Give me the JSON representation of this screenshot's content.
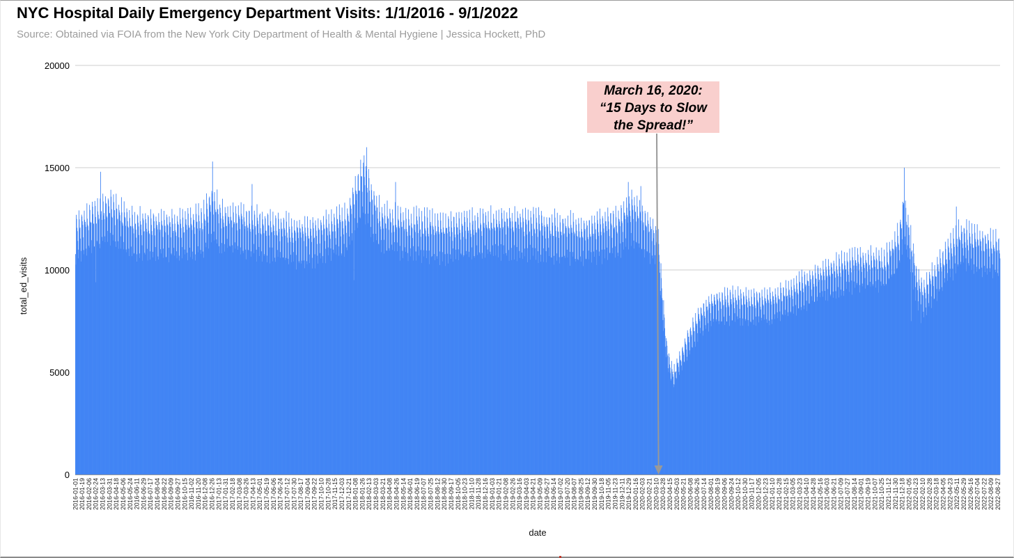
{
  "title": "NYC Hospital Daily Emergency Department Visits: 1/1/2016 - 9/1/2022",
  "subtitle": "Source: Obtained via FOIA from the New York City Department of Health & Mental Hygiene | Jessica Hockett, PhD",
  "annotation": {
    "lines": [
      "March 16, 2020:",
      "“15 Days to Slow",
      "the Spread!”"
    ],
    "x": "2020-03-16"
  },
  "colors": {
    "bar": "#4285f4",
    "grid": "#cccccc",
    "annotation_bg": "#f9cfcd",
    "arrow": "#999999"
  },
  "chart_data": {
    "type": "bar",
    "title": "NYC Hospital Daily Emergency Department Visits: 1/1/2016 - 9/1/2022",
    "xlabel": "date",
    "ylabel": "total_ed_visits",
    "ylim": [
      0,
      20000
    ],
    "yticks": [
      "0",
      "5000",
      "10000",
      "15000",
      "20000"
    ],
    "x_start": "2016-01-01",
    "x_end": "2022-09-01",
    "grid": true,
    "legend": "none",
    "xtick_labels": [
      "2016-01-01",
      "2016-01-19",
      "2016-02-06",
      "2016-02-24",
      "2016-03-13",
      "2016-03-31",
      "2016-04-18",
      "2016-05-06",
      "2016-05-24",
      "2016-06-11",
      "2016-06-29",
      "2016-07-17",
      "2016-08-04",
      "2016-08-22",
      "2016-09-09",
      "2016-09-27",
      "2016-10-15",
      "2016-11-02",
      "2016-11-20",
      "2016-12-08",
      "2016-12-26",
      "2017-01-13",
      "2017-01-31",
      "2017-02-18",
      "2017-03-08",
      "2017-03-26",
      "2017-04-13",
      "2017-05-01",
      "2017-05-19",
      "2017-06-06",
      "2017-06-24",
      "2017-07-12",
      "2017-07-30",
      "2017-08-17",
      "2017-09-04",
      "2017-09-22",
      "2017-10-10",
      "2017-10-28",
      "2017-11-15",
      "2017-12-03",
      "2017-12-21",
      "2018-01-08",
      "2018-01-26",
      "2018-02-13",
      "2018-03-03",
      "2018-03-21",
      "2018-04-08",
      "2018-04-26",
      "2018-05-14",
      "2018-06-01",
      "2018-06-19",
      "2018-07-07",
      "2018-07-25",
      "2018-08-12",
      "2018-08-30",
      "2018-09-17",
      "2018-10-05",
      "2018-10-23",
      "2018-11-10",
      "2018-11-28",
      "2018-12-16",
      "2019-01-03",
      "2019-01-21",
      "2019-02-08",
      "2019-02-26",
      "2019-03-16",
      "2019-04-03",
      "2019-04-21",
      "2019-05-09",
      "2019-05-27",
      "2019-06-14",
      "2019-07-02",
      "2019-07-20",
      "2019-08-07",
      "2019-08-25",
      "2019-09-12",
      "2019-09-30",
      "2019-10-18",
      "2019-11-05",
      "2019-11-23",
      "2019-12-11",
      "2019-12-29",
      "2020-01-16",
      "2020-02-03",
      "2020-02-21",
      "2020-03-10",
      "2020-03-28",
      "2020-04-15",
      "2020-05-03",
      "2020-05-21",
      "2020-06-08",
      "2020-06-26",
      "2020-07-14",
      "2020-08-01",
      "2020-08-19",
      "2020-09-06",
      "2020-09-24",
      "2020-10-12",
      "2020-10-30",
      "2020-11-17",
      "2020-12-05",
      "2020-12-23",
      "2021-01-10",
      "2021-01-28",
      "2021-02-15",
      "2021-03-05",
      "2021-03-23",
      "2021-04-10",
      "2021-04-28",
      "2021-05-16",
      "2021-06-03",
      "2021-06-21",
      "2021-07-09",
      "2021-07-27",
      "2021-08-14",
      "2021-09-01",
      "2021-09-19",
      "2021-10-07",
      "2021-10-25",
      "2021-11-12",
      "2021-11-30",
      "2021-12-18",
      "2022-01-05",
      "2022-01-23",
      "2022-02-10",
      "2022-02-28",
      "2022-03-18",
      "2022-04-05",
      "2022-04-23",
      "2022-05-11",
      "2022-05-29",
      "2022-06-16",
      "2022-07-04",
      "2022-07-22",
      "2022-08-09",
      "2022-08-27"
    ],
    "series": [
      {
        "values_note_free": true,
        "baseline_points": [
          [
            "2016-01-01",
            11500
          ],
          [
            "2016-03-01",
            12400
          ],
          [
            "2016-03-31",
            12600
          ],
          [
            "2016-06-01",
            11800
          ],
          [
            "2016-09-01",
            11700
          ],
          [
            "2016-12-01",
            11900
          ],
          [
            "2016-12-28",
            13000
          ],
          [
            "2017-01-15",
            12200
          ],
          [
            "2017-06-01",
            11700
          ],
          [
            "2017-09-01",
            11300
          ],
          [
            "2017-12-15",
            12000
          ],
          [
            "2018-01-05",
            13200
          ],
          [
            "2018-01-28",
            14200
          ],
          [
            "2018-02-15",
            13300
          ],
          [
            "2018-03-15",
            12100
          ],
          [
            "2018-06-01",
            11800
          ],
          [
            "2018-09-01",
            11600
          ],
          [
            "2018-12-01",
            11800
          ],
          [
            "2019-03-01",
            11900
          ],
          [
            "2019-06-01",
            11700
          ],
          [
            "2019-09-01",
            11500
          ],
          [
            "2019-12-01",
            11900
          ],
          [
            "2020-01-10",
            12600
          ],
          [
            "2020-02-01",
            12100
          ],
          [
            "2020-03-01",
            11500
          ],
          [
            "2020-03-16",
            10800
          ],
          [
            "2020-03-25",
            8600
          ],
          [
            "2020-04-05",
            6200
          ],
          [
            "2020-04-15",
            5100
          ],
          [
            "2020-04-25",
            4800
          ],
          [
            "2020-05-10",
            5400
          ],
          [
            "2020-06-01",
            6400
          ],
          [
            "2020-07-01",
            7500
          ],
          [
            "2020-08-01",
            8100
          ],
          [
            "2020-10-01",
            8300
          ],
          [
            "2020-12-01",
            8200
          ],
          [
            "2021-01-15",
            8300
          ],
          [
            "2021-03-01",
            8700
          ],
          [
            "2021-05-01",
            9300
          ],
          [
            "2021-07-01",
            9800
          ],
          [
            "2021-09-01",
            10100
          ],
          [
            "2021-11-01",
            10000
          ],
          [
            "2021-12-10",
            11200
          ],
          [
            "2021-12-22",
            12700
          ],
          [
            "2022-01-05",
            11400
          ],
          [
            "2022-01-25",
            9200
          ],
          [
            "2022-02-10",
            8600
          ],
          [
            "2022-03-10",
            9400
          ],
          [
            "2022-04-15",
            10400
          ],
          [
            "2022-05-20",
            11300
          ],
          [
            "2022-07-01",
            11000
          ],
          [
            "2022-09-01",
            10700
          ]
        ],
        "peaks": [
          [
            "2016-03-07",
            14800
          ],
          [
            "2016-12-27",
            15300
          ],
          [
            "2018-01-30",
            15600
          ],
          [
            "2018-02-06",
            16000
          ],
          [
            "2017-04-10",
            14200
          ],
          [
            "2018-04-23",
            14300
          ],
          [
            "2019-12-27",
            14300
          ],
          [
            "2020-01-29",
            14100
          ],
          [
            "2021-12-23",
            15000
          ],
          [
            "2022-05-09",
            13100
          ]
        ],
        "troughs": [
          [
            "2016-02-24",
            9400
          ],
          [
            "2018-01-03",
            9500
          ],
          [
            "2020-04-27",
            4400
          ],
          [
            "2021-12-29",
            11000
          ],
          [
            "2022-01-10",
            7500
          ],
          [
            "2022-02-05",
            7400
          ]
        ]
      }
    ]
  }
}
